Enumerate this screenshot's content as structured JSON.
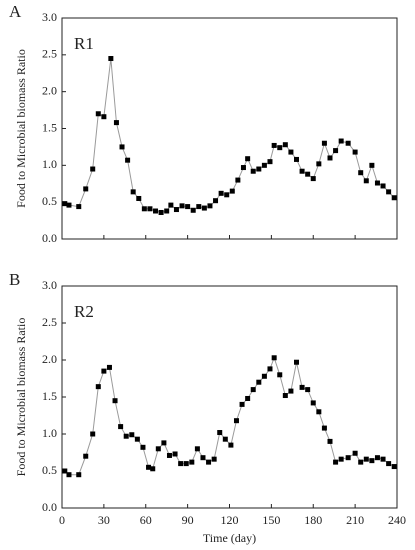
{
  "chart_data": [
    {
      "type": "line",
      "panel_label": "A",
      "inset_label": "R1",
      "ylabel": "Food to Microbial biomass Ratio",
      "x": [
        2,
        5,
        12,
        17,
        22,
        26,
        30,
        35,
        39,
        43,
        47,
        51,
        55,
        59,
        63,
        67,
        71,
        75,
        78,
        82,
        86,
        90,
        94,
        98,
        102,
        106,
        110,
        114,
        118,
        122,
        126,
        130,
        133,
        137,
        141,
        145,
        149,
        152,
        156,
        160,
        164,
        168,
        172,
        176,
        180,
        184,
        188,
        192,
        196,
        200,
        205,
        210,
        214,
        218,
        222,
        226,
        230,
        234,
        238
      ],
      "values": [
        0.48,
        0.46,
        0.44,
        0.68,
        0.95,
        1.7,
        1.66,
        2.45,
        1.58,
        1.25,
        1.07,
        0.64,
        0.55,
        0.41,
        0.41,
        0.38,
        0.36,
        0.38,
        0.46,
        0.4,
        0.45,
        0.44,
        0.39,
        0.44,
        0.42,
        0.45,
        0.52,
        0.62,
        0.6,
        0.65,
        0.8,
        0.97,
        1.09,
        0.92,
        0.95,
        1.0,
        1.05,
        1.27,
        1.24,
        1.28,
        1.18,
        1.08,
        0.92,
        0.88,
        0.82,
        1.02,
        1.3,
        1.1,
        1.2,
        1.33,
        1.3,
        1.18,
        0.9,
        0.79,
        1.0,
        0.76,
        0.72,
        0.64,
        0.56
      ],
      "color": "#000000",
      "line_color": "#9a9a9a",
      "xlim": [
        0,
        240
      ],
      "xticks": [
        0,
        30,
        60,
        90,
        120,
        150,
        180,
        210,
        240
      ],
      "ylim": [
        0,
        3
      ],
      "yticks": [
        {
          "value": 0,
          "label": "0.0"
        },
        {
          "value": 0.5,
          "label": "0.5"
        },
        {
          "value": 1,
          "label": "1.0"
        },
        {
          "value": 1.5,
          "label": "1.5"
        },
        {
          "value": 2,
          "label": "2.0"
        },
        {
          "value": 2.5,
          "label": "2.5"
        },
        {
          "value": 3,
          "label": "3.0"
        }
      ]
    },
    {
      "type": "line",
      "panel_label": "B",
      "inset_label": "R2",
      "ylabel": "Food to Microbial biomass Ratio",
      "xlabel": "Time (day)",
      "x": [
        2,
        5,
        12,
        17,
        22,
        26,
        30,
        34,
        38,
        42,
        46,
        50,
        54,
        58,
        62,
        65,
        69,
        73,
        77,
        81,
        85,
        89,
        93,
        97,
        101,
        105,
        109,
        113,
        117,
        121,
        125,
        129,
        133,
        137,
        141,
        145,
        149,
        152,
        156,
        160,
        164,
        168,
        172,
        176,
        180,
        184,
        188,
        192,
        196,
        200,
        205,
        210,
        214,
        218,
        222,
        226,
        230,
        234,
        238
      ],
      "values": [
        0.5,
        0.45,
        0.45,
        0.7,
        1.0,
        1.64,
        1.85,
        1.9,
        1.45,
        1.1,
        0.97,
        0.99,
        0.93,
        0.82,
        0.55,
        0.53,
        0.8,
        0.88,
        0.71,
        0.73,
        0.6,
        0.6,
        0.62,
        0.8,
        0.68,
        0.62,
        0.66,
        1.02,
        0.93,
        0.85,
        1.18,
        1.4,
        1.48,
        1.6,
        1.7,
        1.78,
        1.88,
        2.03,
        1.8,
        1.52,
        1.58,
        1.97,
        1.63,
        1.6,
        1.42,
        1.3,
        1.08,
        0.9,
        0.62,
        0.66,
        0.68,
        0.74,
        0.62,
        0.66,
        0.64,
        0.68,
        0.66,
        0.6,
        0.56
      ],
      "color": "#000000",
      "line_color": "#9a9a9a",
      "xlim": [
        0,
        240
      ],
      "xticks": [
        0,
        30,
        60,
        90,
        120,
        150,
        180,
        210,
        240
      ],
      "ylim": [
        0,
        3
      ],
      "yticks": [
        {
          "value": 0,
          "label": "0.0"
        },
        {
          "value": 0.5,
          "label": "0.5"
        },
        {
          "value": 1,
          "label": "1.0"
        },
        {
          "value": 1.5,
          "label": "1.5"
        },
        {
          "value": 2,
          "label": "2.0"
        },
        {
          "value": 2.5,
          "label": "2.5"
        },
        {
          "value": 3,
          "label": "3.0"
        }
      ]
    }
  ]
}
